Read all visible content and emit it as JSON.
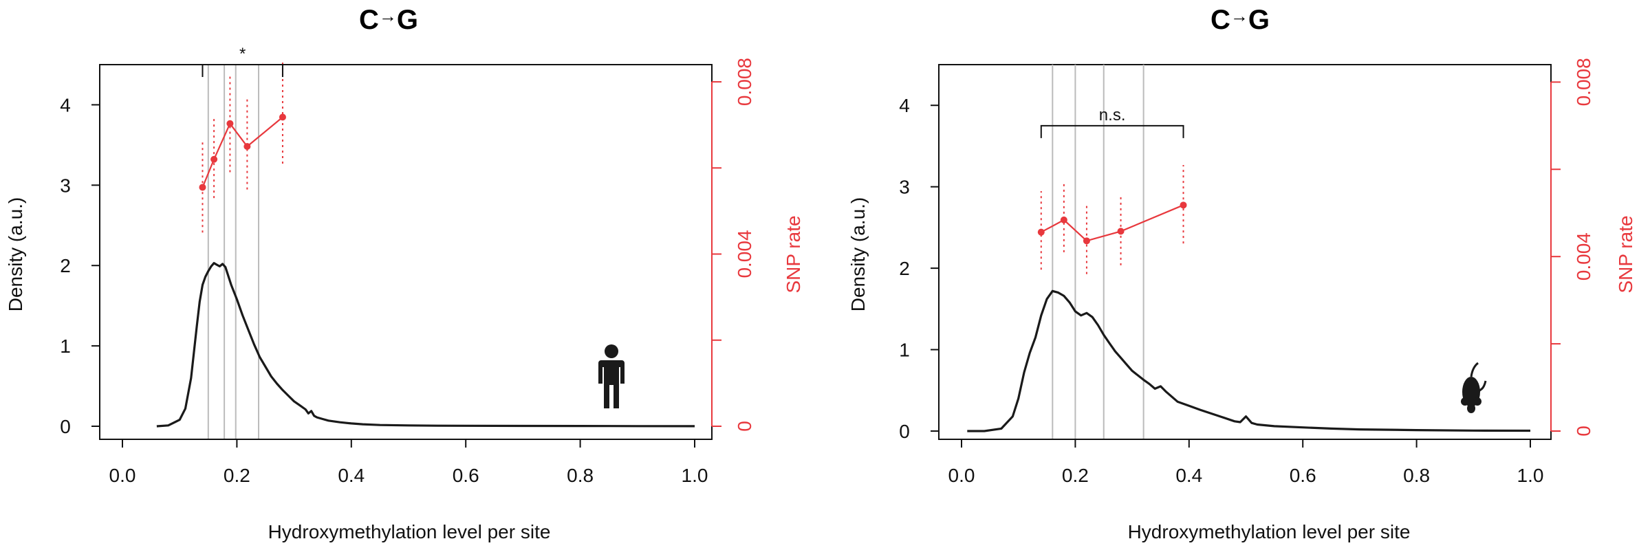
{
  "colors": {
    "curve": "#1a1a1a",
    "snp": "#e8383d",
    "vline": "#bbbbbb",
    "axis": "#111111"
  },
  "chart_data": [
    {
      "type": "line",
      "title_left": "C",
      "title_arrow": "→",
      "title_right": "G",
      "xlabel": "Hydroxymethylation level per site",
      "ylabel": "Density (a.u.)",
      "y2label": "SNP rate",
      "xlim": [
        0,
        1
      ],
      "ylim": [
        0,
        4.5
      ],
      "y2lim": [
        0,
        0.0084
      ],
      "xticks": [
        0.0,
        0.2,
        0.4,
        0.6,
        0.8,
        1.0
      ],
      "xtick_labels": [
        "0.0",
        "0.2",
        "0.4",
        "0.6",
        "0.8",
        "1.0"
      ],
      "yticks": [
        0,
        1,
        2,
        3,
        4
      ],
      "ytick_labels": [
        "0",
        "1",
        "2",
        "3",
        "4"
      ],
      "y2ticks": [
        0,
        0.002,
        0.004,
        0.006,
        0.008
      ],
      "y2tick_labels": [
        "0",
        "",
        "0.004",
        "",
        "0.008"
      ],
      "vlines": [
        0.15,
        0.178,
        0.198,
        0.238
      ],
      "density": {
        "x": [
          0.06,
          0.08,
          0.1,
          0.11,
          0.12,
          0.13,
          0.135,
          0.14,
          0.145,
          0.15,
          0.155,
          0.16,
          0.165,
          0.17,
          0.175,
          0.18,
          0.19,
          0.2,
          0.21,
          0.22,
          0.23,
          0.24,
          0.25,
          0.26,
          0.27,
          0.28,
          0.29,
          0.3,
          0.31,
          0.32,
          0.325,
          0.33,
          0.335,
          0.34,
          0.35,
          0.36,
          0.38,
          0.4,
          0.42,
          0.45,
          0.5,
          0.55,
          0.6,
          0.7,
          0.8,
          0.9,
          1.0
        ],
        "y": [
          0.0,
          0.01,
          0.08,
          0.22,
          0.6,
          1.25,
          1.55,
          1.76,
          1.86,
          1.93,
          1.99,
          2.03,
          2.01,
          1.99,
          2.02,
          1.98,
          1.76,
          1.58,
          1.38,
          1.2,
          1.02,
          0.86,
          0.74,
          0.62,
          0.53,
          0.45,
          0.38,
          0.31,
          0.26,
          0.21,
          0.16,
          0.19,
          0.13,
          0.11,
          0.09,
          0.07,
          0.05,
          0.035,
          0.025,
          0.015,
          0.01,
          0.007,
          0.006,
          0.004,
          0.003,
          0.002,
          0.001
        ]
      },
      "snp": {
        "x": [
          0.14,
          0.16,
          0.188,
          0.218,
          0.28
        ],
        "y": [
          0.00555,
          0.0062,
          0.00703,
          0.0065,
          0.00718
        ],
        "err_low": [
          0.0045,
          0.0053,
          0.0059,
          0.0055,
          0.0061
        ],
        "err_high": [
          0.0066,
          0.0072,
          0.0082,
          0.0076,
          0.0085
        ]
      },
      "bracket": {
        "x1": 0.14,
        "x2": 0.28,
        "y": 4.5,
        "label": "*"
      },
      "icon": "human-icon"
    },
    {
      "type": "line",
      "title_left": "C",
      "title_arrow": "→",
      "title_right": "G",
      "xlabel": "Hydroxymethylation level per site",
      "ylabel": "Density (a.u.)",
      "y2label": "SNP rate",
      "xlim": [
        0,
        1
      ],
      "ylim": [
        0,
        4.5
      ],
      "y2lim": [
        0,
        0.0084
      ],
      "xticks": [
        0.0,
        0.2,
        0.4,
        0.6,
        0.8,
        1.0
      ],
      "xtick_labels": [
        "0.0",
        "0.2",
        "0.4",
        "0.6",
        "0.8",
        "1.0"
      ],
      "yticks": [
        0,
        1,
        2,
        3,
        4
      ],
      "ytick_labels": [
        "0",
        "1",
        "2",
        "3",
        "4"
      ],
      "y2ticks": [
        0,
        0.002,
        0.004,
        0.006,
        0.008
      ],
      "y2tick_labels": [
        "0",
        "",
        "0.004",
        "",
        "0.008"
      ],
      "vlines": [
        0.16,
        0.2,
        0.25,
        0.32
      ],
      "density": {
        "x": [
          0.01,
          0.04,
          0.07,
          0.09,
          0.1,
          0.11,
          0.12,
          0.13,
          0.14,
          0.15,
          0.16,
          0.17,
          0.18,
          0.19,
          0.2,
          0.21,
          0.22,
          0.23,
          0.24,
          0.25,
          0.26,
          0.27,
          0.28,
          0.29,
          0.3,
          0.32,
          0.33,
          0.34,
          0.35,
          0.36,
          0.38,
          0.4,
          0.42,
          0.45,
          0.48,
          0.49,
          0.5,
          0.51,
          0.52,
          0.55,
          0.6,
          0.65,
          0.7,
          0.8,
          0.9,
          1.0
        ],
        "y": [
          0.0,
          0.0,
          0.03,
          0.18,
          0.4,
          0.72,
          0.96,
          1.15,
          1.42,
          1.62,
          1.72,
          1.7,
          1.66,
          1.58,
          1.47,
          1.42,
          1.45,
          1.4,
          1.3,
          1.18,
          1.08,
          0.98,
          0.9,
          0.82,
          0.74,
          0.63,
          0.58,
          0.52,
          0.55,
          0.48,
          0.36,
          0.31,
          0.26,
          0.19,
          0.12,
          0.11,
          0.18,
          0.1,
          0.08,
          0.06,
          0.045,
          0.03,
          0.02,
          0.012,
          0.006,
          0.004
        ]
      },
      "snp": {
        "x": [
          0.14,
          0.18,
          0.22,
          0.28,
          0.39
        ],
        "y": [
          0.00456,
          0.00484,
          0.00436,
          0.00458,
          0.00518
        ],
        "err_low": [
          0.0037,
          0.0041,
          0.0036,
          0.0038,
          0.0043
        ],
        "err_high": [
          0.0055,
          0.0057,
          0.0052,
          0.0054,
          0.0061
        ]
      },
      "bracket": {
        "x1": 0.14,
        "x2": 0.39,
        "y": 3.75,
        "label": "n.s."
      },
      "icon": "mouse-icon"
    }
  ]
}
